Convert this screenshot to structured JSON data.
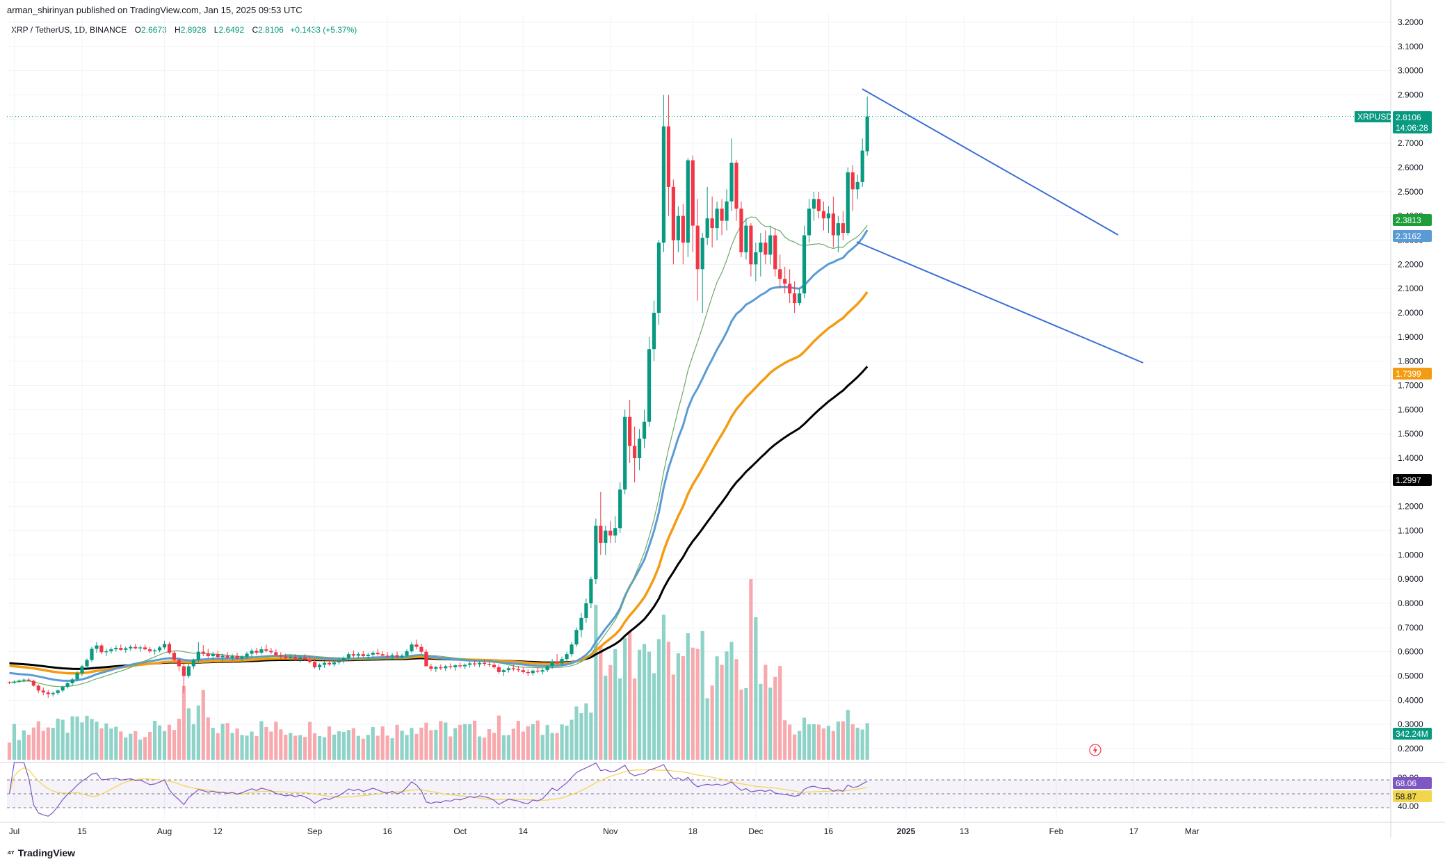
{
  "header": {
    "publisher": "arman_shirinyan published on TradingView.com, Jan 15, 2025 09:53 UTC"
  },
  "legend": {
    "symbol": "XRP / TetherUS, 1D, BINANCE",
    "open_label": "O",
    "open": "2.6673",
    "high_label": "H",
    "high": "2.8928",
    "low_label": "L",
    "low": "2.6492",
    "close_label": "C",
    "close": "2.8106",
    "change": "+0.1433 (+5.37%)"
  },
  "footer": {
    "brand": "TradingView"
  },
  "colors": {
    "up": "#089981",
    "down": "#f23645",
    "up_vol": "#8fd3c8",
    "down_vol": "#f7a9ae",
    "ma_blue": "#5b9bd5",
    "ma_orange": "#f39c12",
    "ma_black": "#000000",
    "ma_green": "#6aaa64",
    "trendline": "#3a6fd8",
    "rsi": "#7e57c2",
    "rsi_ma": "#f2d54a"
  },
  "chart_data": {
    "type": "candlestick",
    "y_ticks": [
      "3.2000",
      "3.1000",
      "3.0000",
      "2.9000",
      "2.8000",
      "2.7000",
      "2.6000",
      "2.5000",
      "2.4000",
      "2.3000",
      "2.2000",
      "2.1000",
      "2.0000",
      "1.9000",
      "1.8000",
      "1.7000",
      "1.6000",
      "1.5000",
      "1.4000",
      "1.3000",
      "1.2000",
      "1.1000",
      "1.0000",
      "0.9000",
      "0.8000",
      "0.7000",
      "0.6000",
      "0.5000",
      "0.4000",
      "0.3000",
      "0.2000"
    ],
    "x_ticks": [
      "Jul",
      "15",
      "Aug",
      "12",
      "Sep",
      "16",
      "Oct",
      "14",
      "Nov",
      "18",
      "Dec",
      "16",
      "2025",
      "13",
      "Feb",
      "17",
      "Mar"
    ],
    "price_tags": [
      {
        "label": "XRPUSDT",
        "value": "2.8106",
        "countdown": "14:06:28",
        "color": "#089981"
      },
      {
        "label": "",
        "value": "2.3813",
        "color": "#1e9e3a"
      },
      {
        "label": "",
        "value": "2.3162",
        "color": "#5b9bd5"
      },
      {
        "label": "",
        "value": "1.7399",
        "color": "#f39c12"
      },
      {
        "label": "",
        "value": "1.2997",
        "color": "#000000"
      },
      {
        "label": "",
        "value": "342.24M",
        "color": "#089981"
      }
    ],
    "rsi": {
      "ticks": [
        "80.00",
        "40.00"
      ],
      "value": "68.06",
      "ma_value": "58.87",
      "upper": 70,
      "lower": 30
    },
    "candles_start": "2024-06-30",
    "candles": [
      [
        0.474,
        0.478,
        0.466,
        0.472
      ],
      [
        0.472,
        0.482,
        0.468,
        0.477
      ],
      [
        0.477,
        0.486,
        0.47,
        0.481
      ],
      [
        0.481,
        0.49,
        0.474,
        0.485
      ],
      [
        0.485,
        0.492,
        0.478,
        0.48
      ],
      [
        0.48,
        0.484,
        0.455,
        0.46
      ],
      [
        0.46,
        0.465,
        0.43,
        0.44
      ],
      [
        0.44,
        0.452,
        0.42,
        0.432
      ],
      [
        0.432,
        0.442,
        0.41,
        0.425
      ],
      [
        0.425,
        0.436,
        0.415,
        0.43
      ],
      [
        0.43,
        0.445,
        0.422,
        0.44
      ],
      [
        0.44,
        0.46,
        0.432,
        0.455
      ],
      [
        0.455,
        0.476,
        0.448,
        0.47
      ],
      [
        0.47,
        0.492,
        0.462,
        0.486
      ],
      [
        0.486,
        0.52,
        0.48,
        0.512
      ],
      [
        0.512,
        0.546,
        0.5,
        0.54
      ],
      [
        0.54,
        0.572,
        0.532,
        0.566
      ],
      [
        0.566,
        0.62,
        0.558,
        0.612
      ],
      [
        0.612,
        0.64,
        0.596,
        0.626
      ],
      [
        0.626,
        0.634,
        0.59,
        0.598
      ],
      [
        0.598,
        0.612,
        0.582,
        0.602
      ],
      [
        0.602,
        0.618,
        0.592,
        0.61
      ],
      [
        0.61,
        0.626,
        0.6,
        0.616
      ],
      [
        0.616,
        0.63,
        0.604,
        0.608
      ],
      [
        0.608,
        0.62,
        0.596,
        0.614
      ],
      [
        0.614,
        0.628,
        0.604,
        0.62
      ],
      [
        0.62,
        0.632,
        0.61,
        0.614
      ],
      [
        0.614,
        0.626,
        0.6,
        0.618
      ],
      [
        0.618,
        0.63,
        0.606,
        0.61
      ],
      [
        0.61,
        0.62,
        0.596,
        0.602
      ],
      [
        0.602,
        0.612,
        0.588,
        0.606
      ],
      [
        0.606,
        0.624,
        0.598,
        0.618
      ],
      [
        0.618,
        0.646,
        0.61,
        0.632
      ],
      [
        0.632,
        0.64,
        0.59,
        0.596
      ],
      [
        0.596,
        0.604,
        0.56,
        0.566
      ],
      [
        0.566,
        0.574,
        0.52,
        0.54
      ],
      [
        0.54,
        0.556,
        0.43,
        0.5
      ],
      [
        0.5,
        0.55,
        0.492,
        0.54
      ],
      [
        0.54,
        0.572,
        0.53,
        0.566
      ],
      [
        0.566,
        0.64,
        0.556,
        0.6
      ],
      [
        0.6,
        0.628,
        0.582,
        0.592
      ],
      [
        0.592,
        0.612,
        0.574,
        0.582
      ],
      [
        0.582,
        0.6,
        0.566,
        0.59
      ],
      [
        0.59,
        0.604,
        0.572,
        0.578
      ],
      [
        0.578,
        0.592,
        0.56,
        0.584
      ],
      [
        0.584,
        0.598,
        0.57,
        0.576
      ],
      [
        0.576,
        0.59,
        0.562,
        0.582
      ],
      [
        0.582,
        0.596,
        0.568,
        0.572
      ],
      [
        0.572,
        0.586,
        0.556,
        0.58
      ],
      [
        0.58,
        0.6,
        0.57,
        0.592
      ],
      [
        0.592,
        0.612,
        0.58,
        0.604
      ],
      [
        0.604,
        0.616,
        0.586,
        0.596
      ],
      [
        0.596,
        0.622,
        0.588,
        0.61
      ],
      [
        0.61,
        0.63,
        0.598,
        0.604
      ],
      [
        0.604,
        0.616,
        0.59,
        0.598
      ],
      [
        0.598,
        0.61,
        0.582,
        0.586
      ],
      [
        0.586,
        0.598,
        0.57,
        0.58
      ],
      [
        0.58,
        0.592,
        0.566,
        0.574
      ],
      [
        0.574,
        0.586,
        0.56,
        0.578
      ],
      [
        0.578,
        0.59,
        0.564,
        0.57
      ],
      [
        0.57,
        0.584,
        0.556,
        0.576
      ],
      [
        0.576,
        0.59,
        0.562,
        0.568
      ],
      [
        0.568,
        0.582,
        0.552,
        0.558
      ],
      [
        0.558,
        0.572,
        0.53,
        0.536
      ],
      [
        0.536,
        0.552,
        0.524,
        0.546
      ],
      [
        0.546,
        0.56,
        0.534,
        0.554
      ],
      [
        0.554,
        0.57,
        0.542,
        0.548
      ],
      [
        0.548,
        0.562,
        0.538,
        0.556
      ],
      [
        0.556,
        0.572,
        0.546,
        0.562
      ],
      [
        0.562,
        0.58,
        0.552,
        0.574
      ],
      [
        0.574,
        0.598,
        0.566,
        0.59
      ],
      [
        0.59,
        0.606,
        0.576,
        0.584
      ],
      [
        0.584,
        0.598,
        0.572,
        0.59
      ],
      [
        0.59,
        0.604,
        0.578,
        0.582
      ],
      [
        0.582,
        0.596,
        0.568,
        0.588
      ],
      [
        0.588,
        0.604,
        0.576,
        0.596
      ],
      [
        0.596,
        0.612,
        0.584,
        0.59
      ],
      [
        0.59,
        0.602,
        0.578,
        0.584
      ],
      [
        0.584,
        0.598,
        0.572,
        0.58
      ],
      [
        0.58,
        0.594,
        0.568,
        0.586
      ],
      [
        0.586,
        0.6,
        0.574,
        0.578
      ],
      [
        0.578,
        0.592,
        0.566,
        0.584
      ],
      [
        0.584,
        0.61,
        0.576,
        0.602
      ],
      [
        0.602,
        0.64,
        0.594,
        0.63
      ],
      [
        0.63,
        0.65,
        0.61,
        0.62
      ],
      [
        0.62,
        0.632,
        0.59,
        0.6
      ],
      [
        0.6,
        0.61,
        0.56,
        0.54
      ],
      [
        0.54,
        0.55,
        0.52,
        0.53
      ],
      [
        0.53,
        0.542,
        0.516,
        0.536
      ],
      [
        0.536,
        0.548,
        0.524,
        0.532
      ],
      [
        0.532,
        0.546,
        0.52,
        0.54
      ],
      [
        0.54,
        0.552,
        0.528,
        0.536
      ],
      [
        0.536,
        0.548,
        0.522,
        0.544
      ],
      [
        0.544,
        0.556,
        0.532,
        0.54
      ],
      [
        0.54,
        0.552,
        0.528,
        0.546
      ],
      [
        0.546,
        0.56,
        0.534,
        0.552
      ],
      [
        0.552,
        0.566,
        0.54,
        0.548
      ],
      [
        0.548,
        0.56,
        0.536,
        0.554
      ],
      [
        0.554,
        0.568,
        0.542,
        0.55
      ],
      [
        0.55,
        0.564,
        0.538,
        0.546
      ],
      [
        0.546,
        0.558,
        0.53,
        0.536
      ],
      [
        0.536,
        0.548,
        0.508,
        0.516
      ],
      [
        0.516,
        0.53,
        0.5,
        0.524
      ],
      [
        0.524,
        0.54,
        0.514,
        0.532
      ],
      [
        0.532,
        0.546,
        0.52,
        0.528
      ],
      [
        0.528,
        0.542,
        0.516,
        0.524
      ],
      [
        0.524,
        0.536,
        0.51,
        0.516
      ],
      [
        0.516,
        0.528,
        0.5,
        0.512
      ],
      [
        0.512,
        0.528,
        0.502,
        0.522
      ],
      [
        0.522,
        0.536,
        0.512,
        0.518
      ],
      [
        0.518,
        0.53,
        0.506,
        0.524
      ],
      [
        0.524,
        0.544,
        0.516,
        0.54
      ],
      [
        0.54,
        0.57,
        0.53,
        0.56
      ],
      [
        0.56,
        0.59,
        0.548,
        0.552
      ],
      [
        0.552,
        0.58,
        0.54,
        0.57
      ],
      [
        0.57,
        0.6,
        0.56,
        0.59
      ],
      [
        0.59,
        0.64,
        0.58,
        0.63
      ],
      [
        0.63,
        0.7,
        0.62,
        0.69
      ],
      [
        0.69,
        0.76,
        0.66,
        0.74
      ],
      [
        0.74,
        0.82,
        0.72,
        0.8
      ],
      [
        0.8,
        0.91,
        0.78,
        0.9
      ],
      [
        0.9,
        1.15,
        0.88,
        1.12
      ],
      [
        1.12,
        1.26,
        1.0,
        1.05
      ],
      [
        1.05,
        1.12,
        1.0,
        1.1
      ],
      [
        1.1,
        1.14,
        1.05,
        1.08
      ],
      [
        1.08,
        1.16,
        1.05,
        1.11
      ],
      [
        1.11,
        1.3,
        1.09,
        1.27
      ],
      [
        1.27,
        1.6,
        1.25,
        1.57
      ],
      [
        1.57,
        1.64,
        1.38,
        1.45
      ],
      [
        1.45,
        1.53,
        1.3,
        1.4
      ],
      [
        1.4,
        1.52,
        1.35,
        1.48
      ],
      [
        1.48,
        1.6,
        1.44,
        1.55
      ],
      [
        1.55,
        1.9,
        1.53,
        1.85
      ],
      [
        1.85,
        2.05,
        1.8,
        2.0
      ],
      [
        2.0,
        2.3,
        1.95,
        2.29
      ],
      [
        2.29,
        2.9,
        2.25,
        2.77
      ],
      [
        2.77,
        2.9,
        2.4,
        2.52
      ],
      [
        2.52,
        2.55,
        2.2,
        2.3
      ],
      [
        2.3,
        2.44,
        2.25,
        2.4
      ],
      [
        2.4,
        2.45,
        2.2,
        2.29
      ],
      [
        2.29,
        2.64,
        2.23,
        2.63
      ],
      [
        2.63,
        2.65,
        2.25,
        2.36
      ],
      [
        2.36,
        2.47,
        2.05,
        2.18
      ],
      [
        2.18,
        2.33,
        2.0,
        2.31
      ],
      [
        2.31,
        2.52,
        2.28,
        2.39
      ],
      [
        2.39,
        2.48,
        2.27,
        2.35
      ],
      [
        2.35,
        2.46,
        2.3,
        2.43
      ],
      [
        2.43,
        2.47,
        2.32,
        2.38
      ],
      [
        2.38,
        2.51,
        2.34,
        2.46
      ],
      [
        2.46,
        2.72,
        2.42,
        2.62
      ],
      [
        2.62,
        2.63,
        2.38,
        2.43
      ],
      [
        2.43,
        2.46,
        2.23,
        2.25
      ],
      [
        2.25,
        2.39,
        2.22,
        2.36
      ],
      [
        2.36,
        2.37,
        2.15,
        2.2
      ],
      [
        2.2,
        2.29,
        2.13,
        2.25
      ],
      [
        2.25,
        2.33,
        2.15,
        2.29
      ],
      [
        2.29,
        2.34,
        2.2,
        2.24
      ],
      [
        2.24,
        2.36,
        2.2,
        2.32
      ],
      [
        2.32,
        2.35,
        2.15,
        2.18
      ],
      [
        2.18,
        2.24,
        2.1,
        2.14
      ],
      [
        2.14,
        2.19,
        2.08,
        2.12
      ],
      [
        2.12,
        2.18,
        2.04,
        2.08
      ],
      [
        2.08,
        2.13,
        2.0,
        2.04
      ],
      [
        2.04,
        2.1,
        2.03,
        2.08
      ],
      [
        2.08,
        2.36,
        2.06,
        2.32
      ],
      [
        2.32,
        2.47,
        2.29,
        2.43
      ],
      [
        2.43,
        2.5,
        2.38,
        2.47
      ],
      [
        2.47,
        2.5,
        2.39,
        2.42
      ],
      [
        2.42,
        2.46,
        2.34,
        2.39
      ],
      [
        2.39,
        2.44,
        2.33,
        2.41
      ],
      [
        2.41,
        2.48,
        2.27,
        2.32
      ],
      [
        2.32,
        2.4,
        2.25,
        2.37
      ],
      [
        2.37,
        2.42,
        2.3,
        2.33
      ],
      [
        2.33,
        2.6,
        2.32,
        2.58
      ],
      [
        2.58,
        2.61,
        2.42,
        2.51
      ],
      [
        2.51,
        2.57,
        2.47,
        2.54
      ],
      [
        2.54,
        2.72,
        2.52,
        2.67
      ],
      [
        2.667,
        2.8928,
        2.6492,
        2.8106
      ]
    ]
  }
}
